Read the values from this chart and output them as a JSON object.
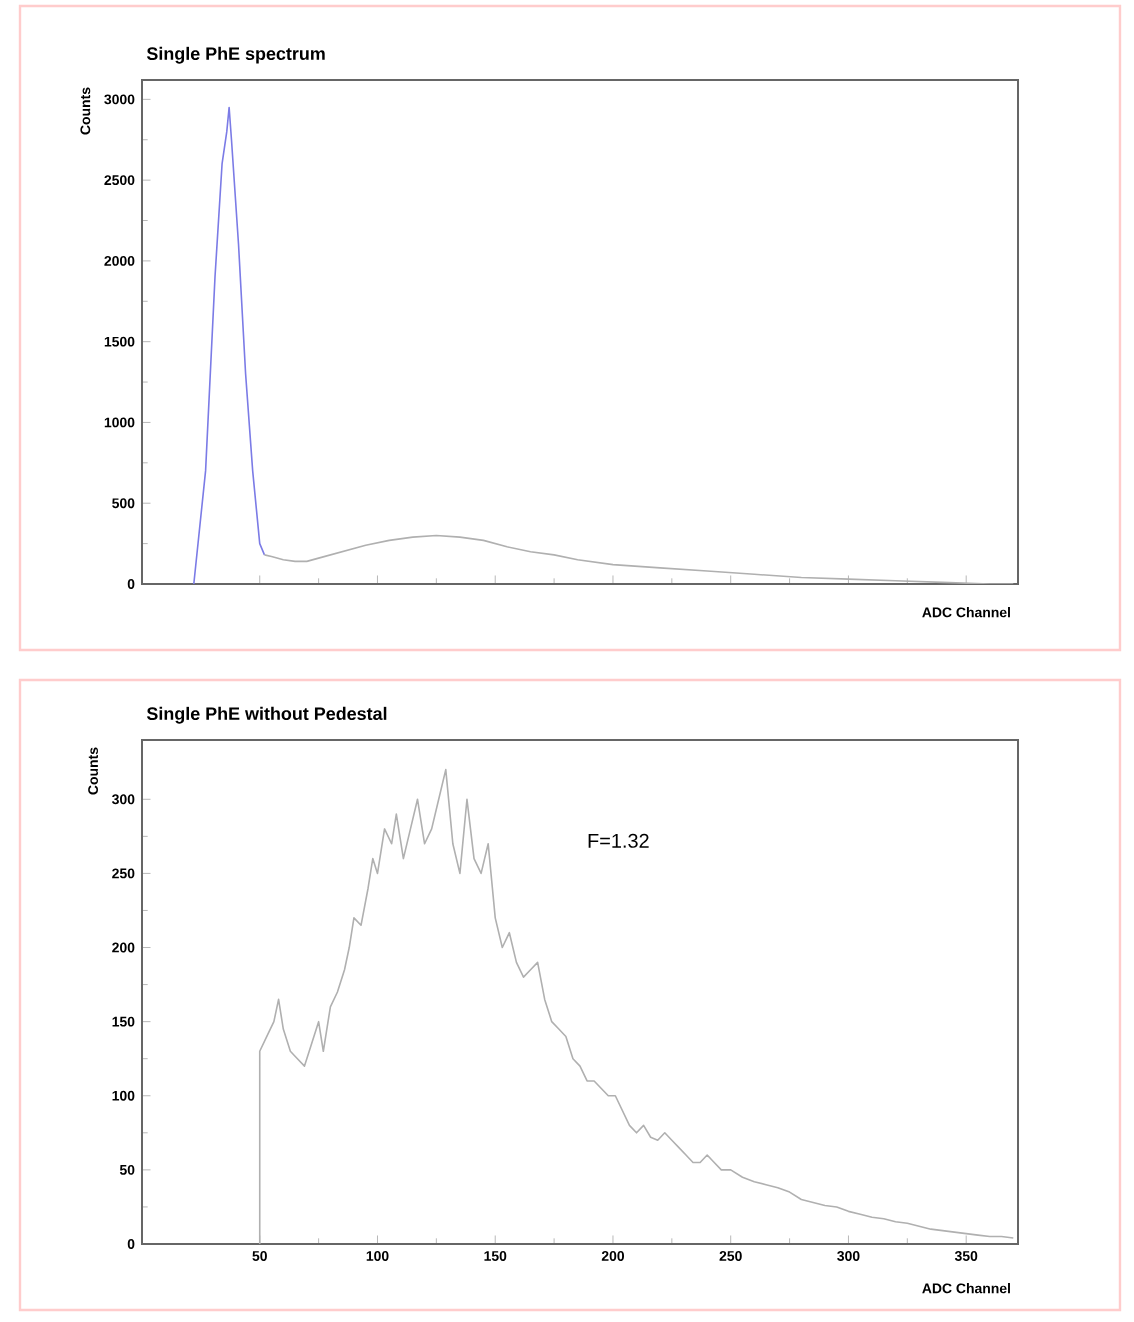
{
  "chart_data": [
    {
      "type": "line",
      "title": "Single PhE spectrum",
      "xlabel": "ADC Channel",
      "ylabel": "Counts",
      "xlim": [
        0,
        372
      ],
      "ylim": [
        0,
        3120
      ],
      "xticks": [
        {
          "value": 50,
          "label": null
        },
        {
          "value": 100,
          "label": null
        },
        {
          "value": 150,
          "label": null
        },
        {
          "value": 200,
          "label": null
        },
        {
          "value": 250,
          "label": null
        },
        {
          "value": 300,
          "label": null
        },
        {
          "value": 350,
          "label": null
        }
      ],
      "yticks": [
        0,
        500,
        1000,
        1500,
        2000,
        2500,
        3000
      ],
      "tick_labels": "y",
      "series": [
        {
          "color": "#7b7be6",
          "x": [
            22,
            27,
            31,
            34,
            36,
            37,
            38,
            41,
            44,
            47,
            50,
            52
          ],
          "values": [
            0,
            700,
            1900,
            2600,
            2800,
            2950,
            2750,
            2100,
            1300,
            700,
            250,
            180
          ]
        },
        {
          "color": "#b0b0b0",
          "x": [
            52,
            55,
            60,
            65,
            70,
            75,
            85,
            95,
            105,
            115,
            125,
            135,
            145,
            155,
            165,
            175,
            185,
            200,
            220,
            240,
            260,
            280,
            300,
            320,
            340,
            360,
            370
          ],
          "values": [
            180,
            170,
            150,
            140,
            140,
            160,
            200,
            240,
            270,
            290,
            300,
            290,
            270,
            230,
            200,
            180,
            150,
            120,
            100,
            80,
            60,
            40,
            30,
            20,
            10,
            0,
            0
          ]
        }
      ]
    },
    {
      "type": "line",
      "title": "Single PhE without Pedestal",
      "xlabel": "ADC Channel",
      "ylabel": "Counts",
      "xlim": [
        0,
        372
      ],
      "ylim": [
        0,
        340
      ],
      "xticks": [
        50,
        100,
        150,
        200,
        250,
        300,
        350
      ],
      "yticks": [
        0,
        50,
        100,
        150,
        200,
        250,
        300
      ],
      "annotations": [
        "F=1.32"
      ],
      "series": [
        {
          "color": "#b0b0b0",
          "x": [
            50,
            50,
            53,
            56,
            58,
            60,
            63,
            66,
            69,
            72,
            75,
            77,
            80,
            83,
            86,
            88,
            90,
            93,
            96,
            98,
            100,
            103,
            106,
            108,
            111,
            114,
            117,
            120,
            123,
            126,
            129,
            132,
            135,
            138,
            141,
            144,
            147,
            150,
            153,
            156,
            159,
            162,
            165,
            168,
            171,
            174,
            177,
            180,
            183,
            186,
            189,
            192,
            195,
            198,
            201,
            204,
            207,
            210,
            213,
            216,
            219,
            222,
            225,
            228,
            231,
            234,
            237,
            240,
            243,
            246,
            250,
            255,
            260,
            265,
            270,
            275,
            280,
            285,
            290,
            295,
            300,
            305,
            310,
            315,
            320,
            325,
            330,
            335,
            340,
            345,
            350,
            355,
            360,
            365,
            370
          ],
          "values": [
            0,
            130,
            140,
            150,
            165,
            145,
            130,
            125,
            120,
            135,
            150,
            130,
            160,
            170,
            185,
            200,
            220,
            215,
            240,
            260,
            250,
            280,
            270,
            290,
            260,
            280,
            300,
            270,
            280,
            300,
            320,
            270,
            250,
            300,
            260,
            250,
            270,
            220,
            200,
            210,
            190,
            180,
            185,
            190,
            165,
            150,
            145,
            140,
            125,
            120,
            110,
            110,
            105,
            100,
            100,
            90,
            80,
            75,
            80,
            72,
            70,
            75,
            70,
            65,
            60,
            55,
            55,
            60,
            55,
            50,
            50,
            45,
            42,
            40,
            38,
            35,
            30,
            28,
            26,
            25,
            22,
            20,
            18,
            17,
            15,
            14,
            12,
            10,
            9,
            8,
            7,
            6,
            5,
            5,
            4
          ]
        }
      ]
    }
  ]
}
